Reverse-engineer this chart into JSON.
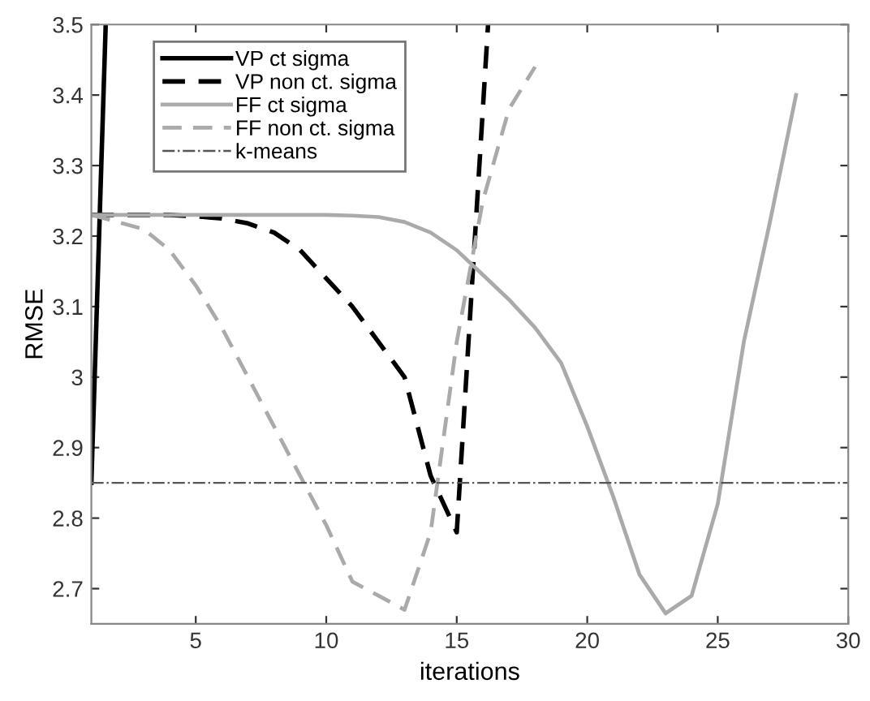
{
  "chart_data": {
    "type": "line",
    "xlabel": "iterations",
    "ylabel": "RMSE",
    "xlim": [
      1,
      30
    ],
    "ylim": [
      2.65,
      3.5
    ],
    "xticks": [
      5,
      10,
      15,
      20,
      25,
      30
    ],
    "yticks": [
      2.7,
      2.8,
      2.9,
      3,
      3.1,
      3.2,
      3.3,
      3.4,
      3.5
    ],
    "grid": false,
    "legend": "top left",
    "marker": "none",
    "series": [
      {
        "name": "VP ct sigma",
        "color": "#000000",
        "line_style": "solid",
        "x": [
          1,
          1.55
        ],
        "values": [
          2.85,
          3.5
        ]
      },
      {
        "name": "VP non ct. sigma",
        "color": "#000000",
        "line_style": "dashed",
        "x": [
          1,
          2,
          3,
          4,
          5,
          6,
          7,
          8,
          9,
          10,
          11,
          12,
          13,
          14,
          15,
          16.2
        ],
        "values": [
          3.23,
          3.23,
          3.23,
          3.23,
          3.228,
          3.225,
          3.218,
          3.205,
          3.18,
          3.14,
          3.1,
          3.05,
          3.0,
          2.86,
          2.78,
          3.5
        ]
      },
      {
        "name": "FF ct sigma",
        "color": "#aaaaaa",
        "line_style": "solid",
        "x": [
          1,
          2,
          3,
          4,
          5,
          6,
          7,
          8,
          9,
          10,
          11,
          12,
          13,
          14,
          15,
          16,
          17,
          18,
          19,
          20,
          21,
          22,
          23,
          24,
          25,
          26,
          27,
          28
        ],
        "values": [
          3.23,
          3.23,
          3.23,
          3.23,
          3.23,
          3.23,
          3.23,
          3.23,
          3.23,
          3.23,
          3.229,
          3.227,
          3.22,
          3.205,
          3.18,
          3.145,
          3.11,
          3.07,
          3.02,
          2.93,
          2.83,
          2.72,
          2.665,
          2.69,
          2.82,
          3.05,
          3.22,
          3.4
        ]
      },
      {
        "name": "FF non ct. sigma",
        "color": "#aaaaaa",
        "line_style": "dashed",
        "x": [
          1,
          2,
          3,
          4,
          5,
          6,
          7,
          8,
          9,
          10,
          11,
          12,
          13,
          14,
          15,
          16,
          17,
          18
        ],
        "values": [
          3.23,
          3.22,
          3.21,
          3.18,
          3.13,
          3.07,
          3.0,
          2.93,
          2.86,
          2.79,
          2.71,
          2.69,
          2.67,
          2.78,
          3.05,
          3.25,
          3.38,
          3.44
        ]
      },
      {
        "name": "k-means",
        "color": "#555555",
        "line_style": "dashdot",
        "x": [
          1,
          30
        ],
        "values": [
          2.85,
          2.85
        ]
      }
    ]
  }
}
